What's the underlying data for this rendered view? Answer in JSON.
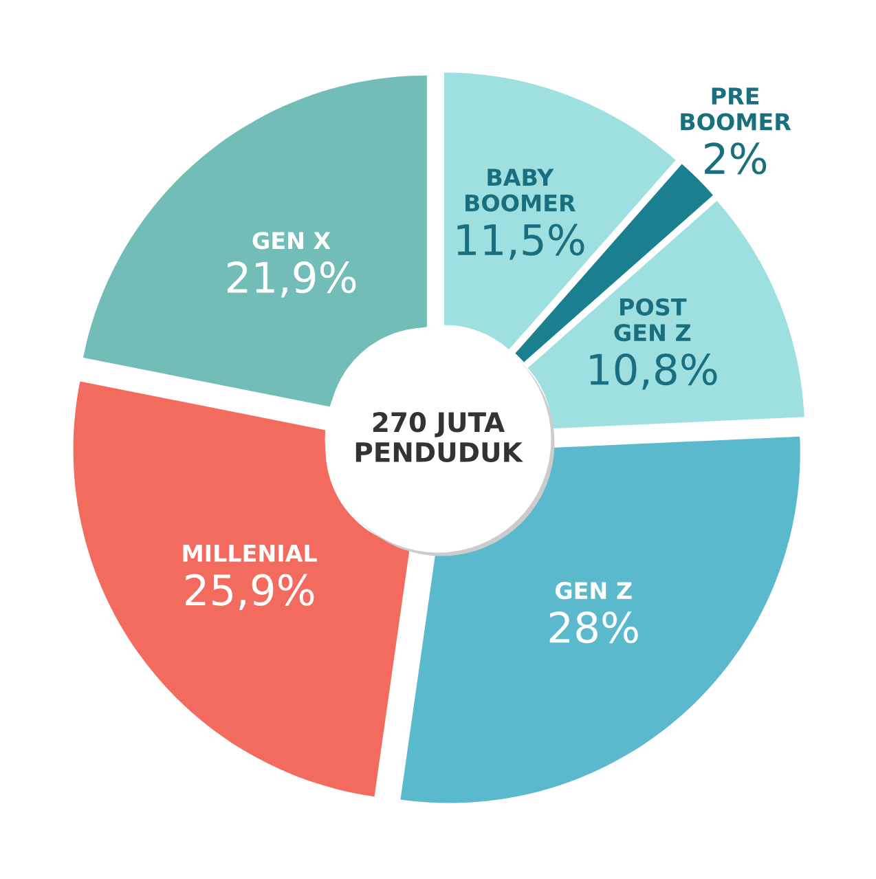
{
  "chart_data": {
    "type": "donut",
    "categories": [
      "BABY\nBOOMER",
      "PRE\nBOOMER",
      "POST\nGEN Z",
      "GEN Z",
      "MILLENIAL",
      "GEN X"
    ],
    "values": [
      11.5,
      2,
      10.8,
      28,
      25.9,
      21.9
    ],
    "value_labels": [
      "11,5%",
      "2%",
      "10,8%",
      "28%",
      "25,9%",
      "21,9%"
    ],
    "colors": [
      "#9de0df",
      "#1a7f8e",
      "#9de0df",
      "#5ab9cc",
      "#f26b5e",
      "#72bdb8"
    ],
    "annotations": [
      "270 JUTA\nPENDUDUK"
    ],
    "legend": false
  }
}
